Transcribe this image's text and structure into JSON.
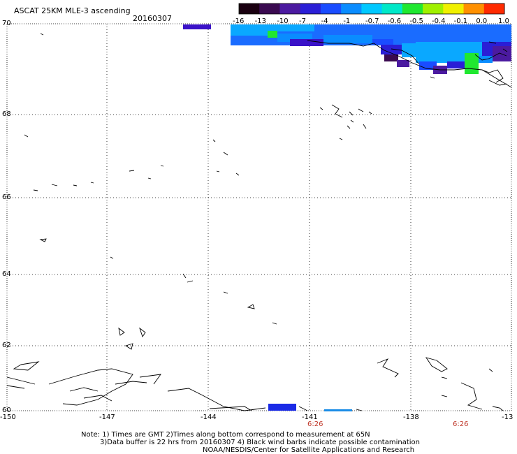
{
  "header": {
    "title": "ASCAT 25KM MLE-3 ascending",
    "date": "20160307"
  },
  "colorbar": {
    "labels": [
      "-16",
      "-13",
      "-10",
      "-7",
      "-4",
      "-1",
      "-0.7",
      "-0.6",
      "-0.5",
      "-0.4",
      "-0.1",
      "0.0",
      "1.0"
    ],
    "colors": [
      "#1a0010",
      "#3a0a50",
      "#4b1aa0",
      "#2a1ed6",
      "#1a4cff",
      "#0a8cff",
      "#00c8ff",
      "#00e8c8",
      "#20e830",
      "#a0f000",
      "#f0f000",
      "#ff9000",
      "#ff2a00"
    ]
  },
  "map": {
    "lat_labels": [
      "70",
      "68",
      "66",
      "64",
      "62",
      "60"
    ],
    "lon_labels": [
      "-150",
      "-147",
      "-144",
      "-141",
      "-138",
      "-13"
    ],
    "time_labels": [
      "6:26",
      "6:26"
    ]
  },
  "footer": {
    "line1": "Note: 1) Times are GMT 2)Times along bottom correspond to measurement at 65N",
    "line2": "3)Data buffer is 22 hrs from 20160307 4) Black wind barbs indicate possible contamination",
    "line3": "NOAA/NESDIS/Center for Satellite Applications and Research"
  }
}
